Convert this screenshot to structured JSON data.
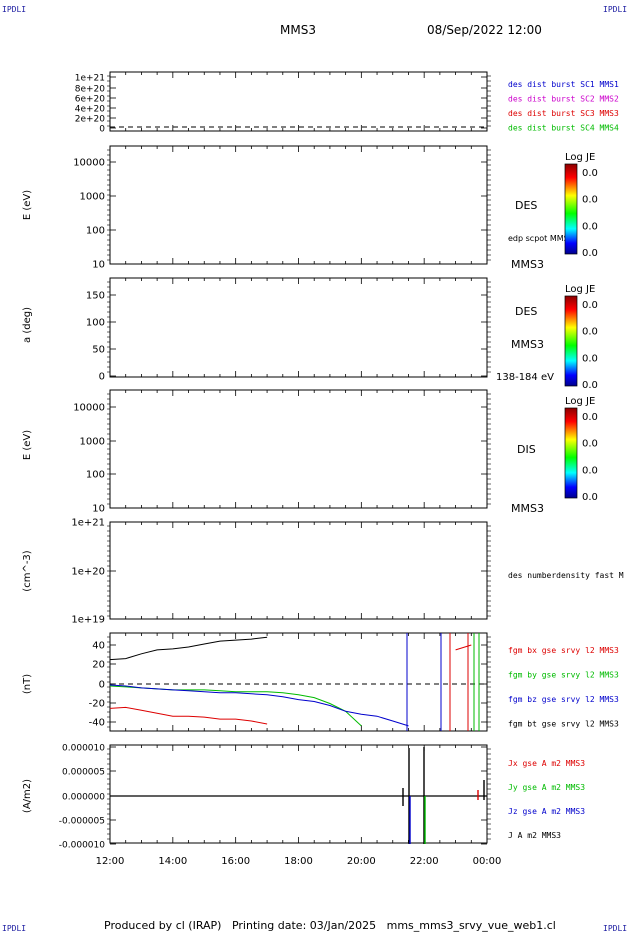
{
  "header": {
    "corner_tl": "IPDLI",
    "corner_tr": "IPDLI",
    "corner_bl": "IPDLI",
    "corner_br": "IPDLI",
    "spacecraft": "MMS3",
    "datetime": "08/Sep/2022 12:00"
  },
  "footer": {
    "text": "Produced by cl (IRAP)   Printing date: 03/Jan/2025   mms_mms3_srvy_vue_web1.cl"
  },
  "colors": {
    "blue": "#0000cc",
    "magenta": "#cc00cc",
    "red": "#dd0000",
    "green": "#00bb00",
    "black": "#000000"
  },
  "chart_data": [
    {
      "type": "line",
      "panel": "burst",
      "ylabel": "",
      "yticks": [
        "1e+21",
        "8e+20",
        "6e+20",
        "4e+20",
        "2e+20",
        "0"
      ],
      "legend": [
        {
          "text": "des dist burst SC1 MMS1",
          "color": "blue"
        },
        {
          "text": "des dist burst SC2 MMS2",
          "color": "magenta"
        },
        {
          "text": "des dist burst SC3 MMS3",
          "color": "red"
        },
        {
          "text": "des dist burst SC4 MMS4",
          "color": "green"
        }
      ]
    },
    {
      "type": "heatmap",
      "panel": "des_energy",
      "ylabel": "E (eV)",
      "yticks": [
        "10000",
        "1000",
        "100",
        "10"
      ],
      "side_labels": [
        "DES",
        "edp scpot MMS3",
        "MMS3"
      ],
      "colorbar": {
        "title": "Log JE",
        "ticks": [
          "0.0",
          "0.0",
          "0.0",
          "0.0"
        ]
      }
    },
    {
      "type": "heatmap",
      "panel": "des_pitch",
      "ylabel": "a (deg)",
      "yticks": [
        "150",
        "100",
        "50",
        "0"
      ],
      "side_labels": [
        "DES",
        "MMS3",
        "138-184 eV"
      ],
      "colorbar": {
        "title": "Log JE",
        "ticks": [
          "0.0",
          "0.0",
          "0.0",
          "0.0"
        ]
      }
    },
    {
      "type": "heatmap",
      "panel": "dis_energy",
      "ylabel": "E (eV)",
      "yticks": [
        "10000",
        "1000",
        "100",
        "10"
      ],
      "side_labels": [
        "DIS",
        "MMS3"
      ],
      "colorbar": {
        "title": "Log JE",
        "ticks": [
          "0.0",
          "0.0",
          "0.0",
          "0.0"
        ]
      }
    },
    {
      "type": "line",
      "panel": "density",
      "ylabel": "(cm^-3)",
      "yticks": [
        "1e+21",
        "1e+20",
        "1e+19"
      ],
      "legend": [
        {
          "text": "des numberdensity fast M",
          "color": "black"
        }
      ]
    },
    {
      "type": "line",
      "panel": "fgm",
      "ylabel": "(nT)",
      "yticks": [
        "40",
        "20",
        "0",
        "-20",
        "-40"
      ],
      "ylim": [
        -45,
        50
      ],
      "x": [
        "12:00",
        "12:30",
        "13:00",
        "13:30",
        "14:00",
        "14:30",
        "15:00",
        "15:30",
        "16:00",
        "16:30",
        "17:00",
        "17:30",
        "18:00",
        "18:30",
        "19:00",
        "19:30",
        "20:00",
        "20:30",
        "21:00",
        "21:30",
        "22:00",
        "22:30",
        "23:00",
        "23:30"
      ],
      "series": [
        {
          "name": "fgm bx gse srvy l2 MMS3",
          "color": "red",
          "values": [
            -25,
            -24,
            -27,
            -30,
            -33,
            -33,
            -34,
            -36,
            -36,
            -38,
            -41,
            null,
            null,
            null,
            null,
            null,
            null,
            null,
            null,
            null,
            null,
            null,
            35,
            40
          ]
        },
        {
          "name": "fgm by gse srvy l2 MMS3",
          "color": "green",
          "values": [
            -2,
            -3,
            -4,
            -5,
            -6,
            -6,
            -6,
            -7,
            -8,
            -8,
            -8,
            -9,
            -11,
            -14,
            -20,
            -28,
            -43,
            null,
            null,
            null,
            null,
            null,
            null,
            40
          ]
        },
        {
          "name": "fgm bz gse srvy l2 MMS3",
          "color": "blue",
          "values": [
            -1,
            -2,
            -4,
            -5,
            -6,
            -7,
            -8,
            -9,
            -9,
            -10,
            -11,
            -13,
            -16,
            -18,
            -22,
            -28,
            -31,
            -33,
            -38,
            -43,
            null,
            null,
            null,
            null
          ]
        },
        {
          "name": "fgm bt gse srvy l2 MMS3",
          "color": "black",
          "values": [
            25,
            26,
            31,
            35,
            36,
            38,
            41,
            44,
            45,
            46,
            48,
            null,
            null,
            null,
            null,
            null,
            null,
            null,
            null,
            null,
            null,
            null,
            null,
            null
          ]
        }
      ]
    },
    {
      "type": "line",
      "panel": "current",
      "ylabel": "(A/m2)",
      "yticks": [
        "0.000010",
        "0.000005",
        "0.000000",
        "-0.000005",
        "-0.000010"
      ],
      "xticks": [
        "12:00",
        "14:00",
        "16:00",
        "18:00",
        "20:00",
        "22:00",
        "00:00"
      ],
      "legend": [
        {
          "text": "Jx gse A m2 MMS3",
          "color": "red"
        },
        {
          "text": "Jy gse A m2 MMS3",
          "color": "green"
        },
        {
          "text": "Jz gse A m2 MMS3",
          "color": "blue"
        },
        {
          "text": "J A m2 MMS3",
          "color": "black"
        }
      ]
    }
  ]
}
